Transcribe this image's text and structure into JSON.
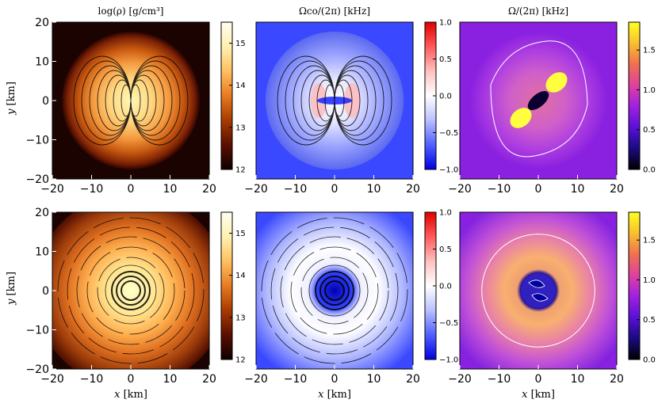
{
  "figure": {
    "x_label_prefix": "x",
    "x_label_unit": "[km]",
    "y_label_prefix": "y",
    "y_label_unit": "[km]"
  },
  "chart_data": [
    {
      "type": "heatmap",
      "id": "rho-top",
      "title": "log(ρ) [g/cm³]",
      "row": 0,
      "col": 0,
      "xlim": [
        -20,
        20
      ],
      "ylim": [
        -20,
        20
      ],
      "xticks": [
        -20,
        -10,
        0,
        10,
        20
      ],
      "yticks": [
        -20,
        -10,
        0,
        10,
        20
      ],
      "colormap": "afmhot",
      "cbar_range": [
        12,
        15.5
      ],
      "cbar_ticks": [
        "12",
        "13",
        "14",
        "15"
      ]
    },
    {
      "type": "heatmap",
      "id": "omegaco-top",
      "title": "Ωco/(2π) [kHz]",
      "row": 0,
      "col": 1,
      "xlim": [
        -20,
        20
      ],
      "ylim": [
        -20,
        20
      ],
      "xticks": [
        -20,
        -10,
        0,
        10,
        20
      ],
      "yticks": [],
      "colormap": "bwr",
      "cbar_range": [
        -1,
        1
      ],
      "cbar_ticks": [
        "−1.0",
        "−0.5",
        "0.0",
        "0.5",
        "1.0"
      ]
    },
    {
      "type": "heatmap",
      "id": "omega-top",
      "title": "Ω/(2π) [kHz]",
      "row": 0,
      "col": 2,
      "xlim": [
        -20,
        20
      ],
      "ylim": [
        -20,
        20
      ],
      "xticks": [
        -20,
        -10,
        0,
        10,
        20
      ],
      "yticks": [],
      "colormap": "plasma",
      "cbar_range": [
        0,
        1.85
      ],
      "cbar_ticks": [
        "0.0",
        "0.5",
        "1.0",
        "1.5"
      ]
    },
    {
      "type": "heatmap",
      "id": "rho-bottom",
      "title": "",
      "row": 1,
      "col": 0,
      "xlim": [
        -20,
        20
      ],
      "ylim": [
        -20,
        20
      ],
      "xticks": [
        -20,
        -10,
        0,
        10,
        20
      ],
      "yticks": [
        -20,
        -10,
        0,
        10,
        20
      ],
      "colormap": "afmhot",
      "cbar_range": [
        12,
        15.5
      ],
      "cbar_ticks": [
        "12",
        "13",
        "14",
        "15"
      ]
    },
    {
      "type": "heatmap",
      "id": "omegaco-bottom",
      "title": "",
      "row": 1,
      "col": 1,
      "xlim": [
        -20,
        20
      ],
      "ylim": [
        -20,
        20
      ],
      "xticks": [
        -20,
        -10,
        0,
        10,
        20
      ],
      "yticks": [],
      "colormap": "bwr",
      "cbar_range": [
        -1,
        1
      ],
      "cbar_ticks": [
        "−1.0",
        "−0.5",
        "0.0",
        "0.5",
        "1.0"
      ]
    },
    {
      "type": "heatmap",
      "id": "omega-bottom",
      "title": "",
      "row": 1,
      "col": 2,
      "xlim": [
        -20,
        20
      ],
      "ylim": [
        -20,
        20
      ],
      "xticks": [
        -20,
        -10,
        0,
        10,
        20
      ],
      "yticks": [],
      "colormap": "plasma",
      "cbar_range": [
        0,
        1.85
      ],
      "cbar_ticks": [
        "0.0",
        "0.5",
        "1.0",
        "1.5"
      ]
    }
  ]
}
